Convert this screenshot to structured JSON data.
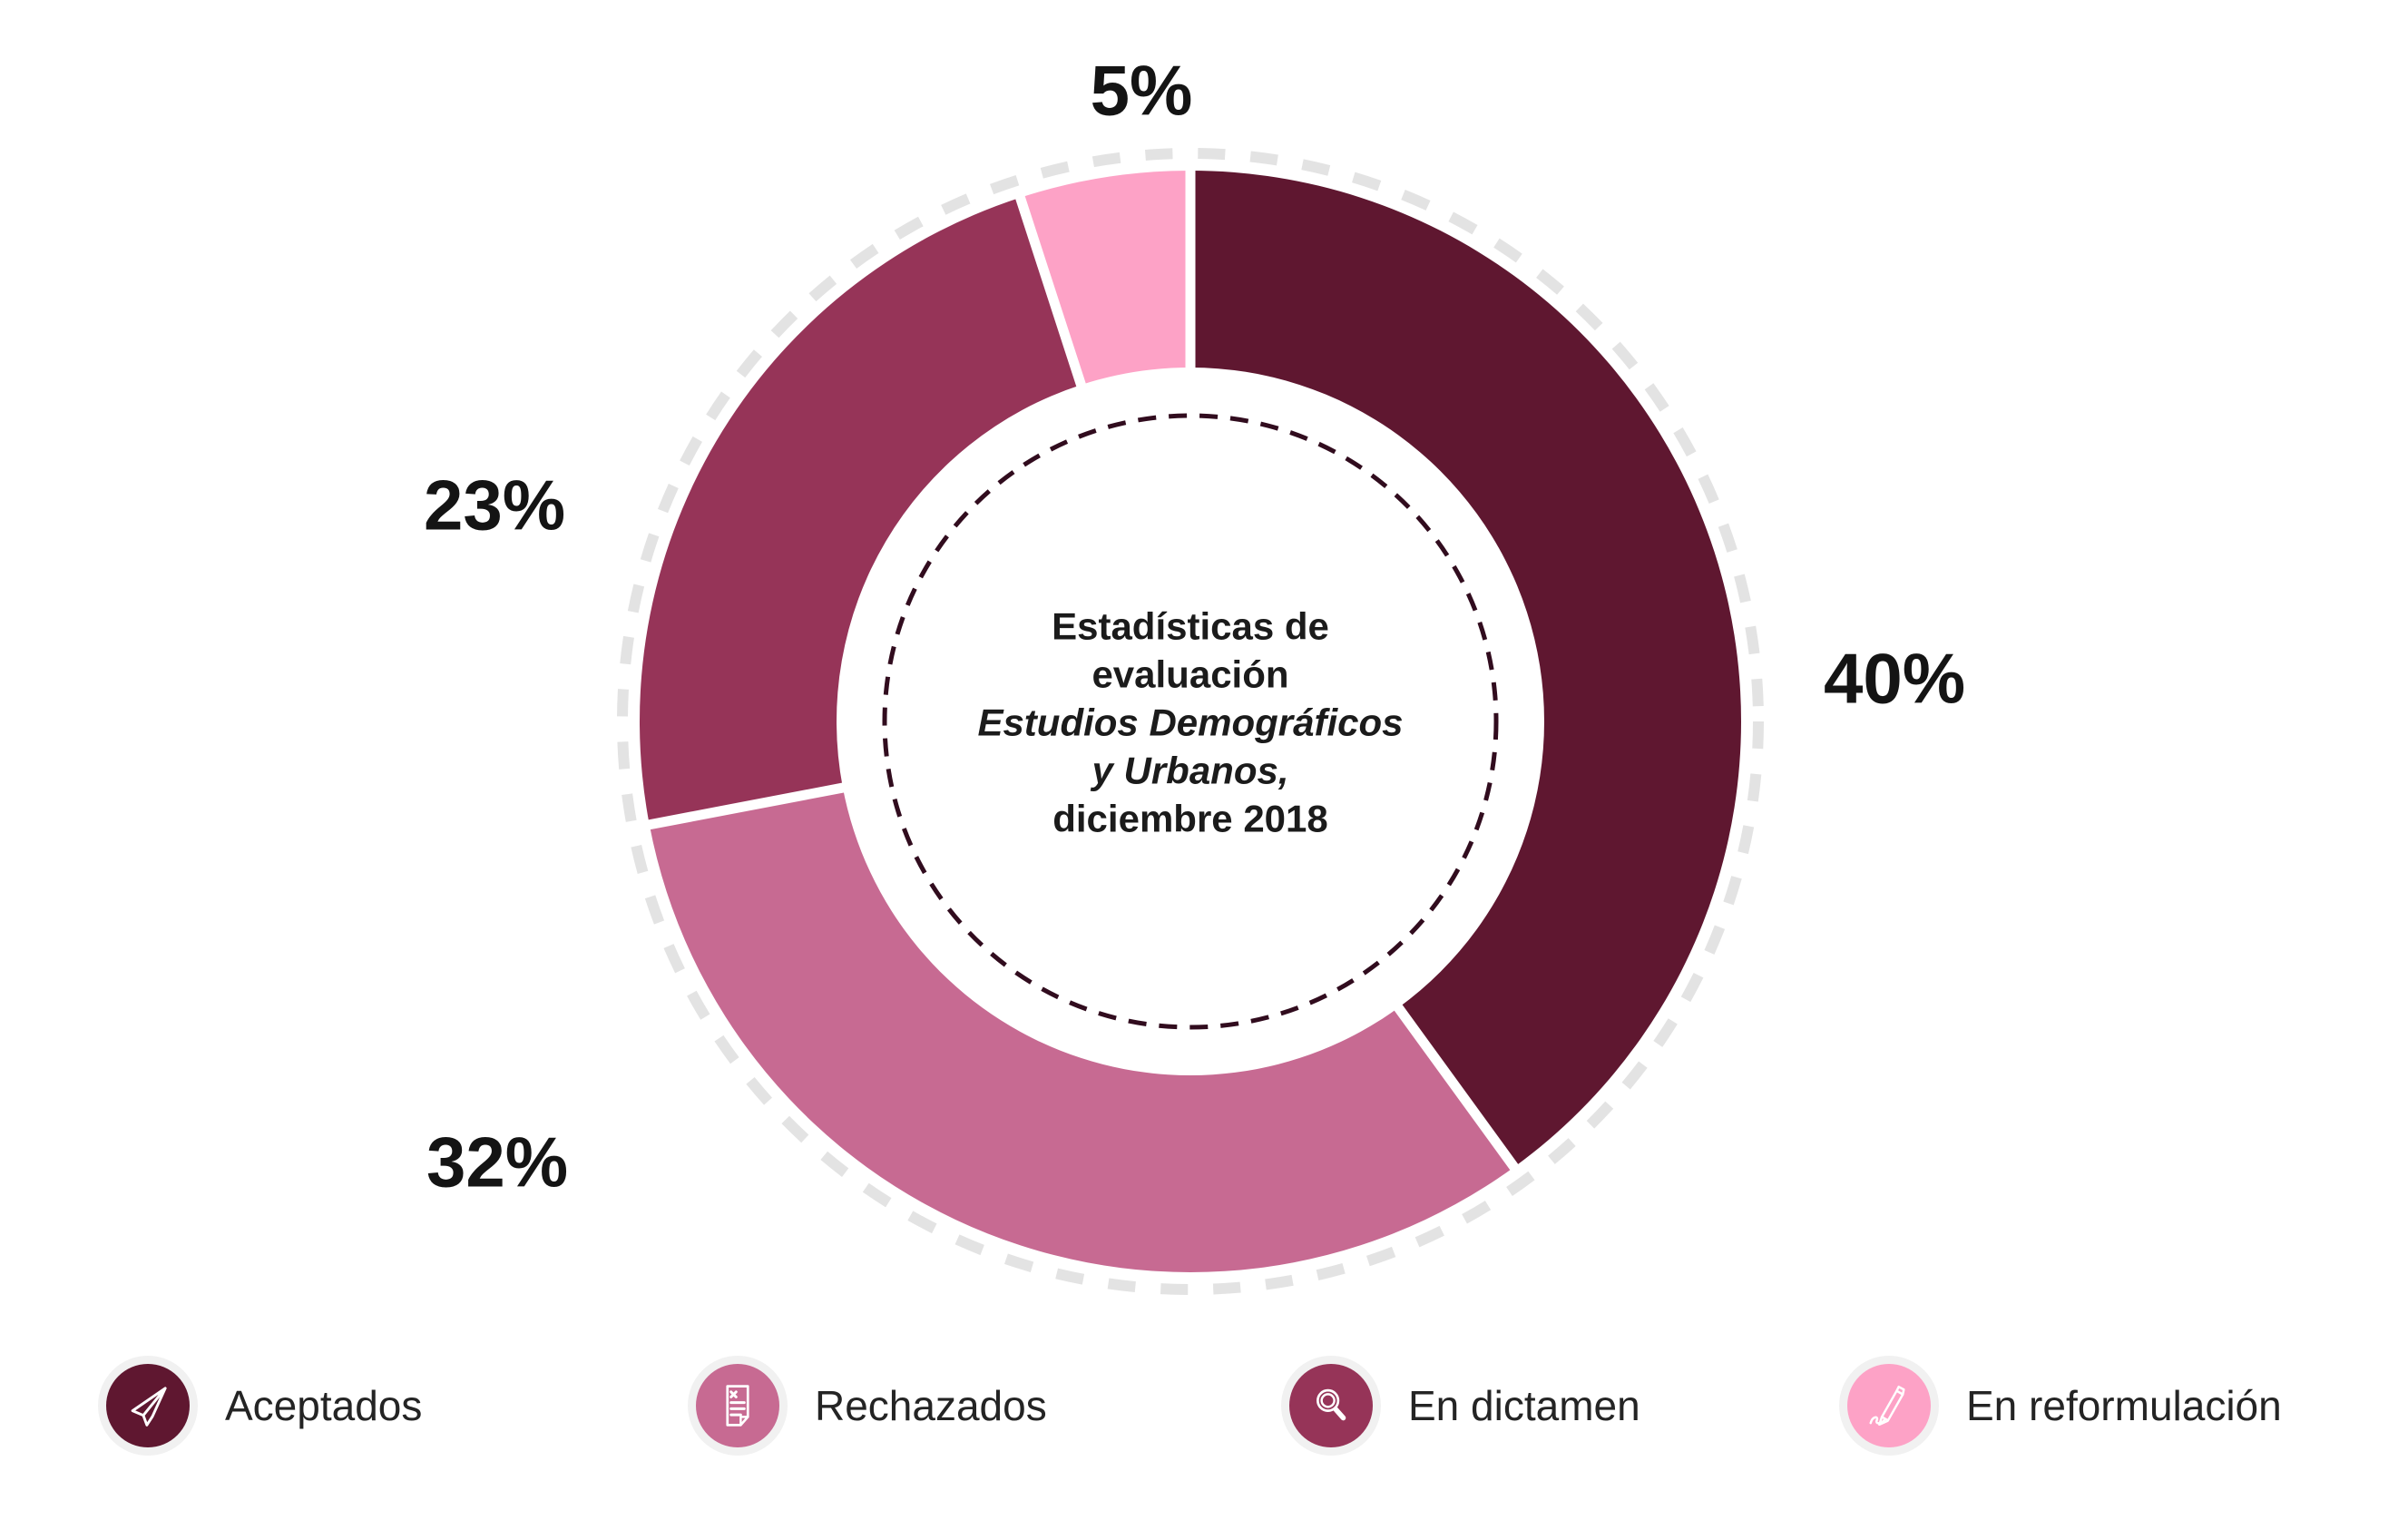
{
  "chart_data": {
    "type": "pie",
    "subtype": "donut",
    "title": "Estadísticas de evaluación Estudios Demográficos y Urbanos, diciembre 2018",
    "center_label": {
      "line1": "Estadísticas de",
      "line2": "evaluación",
      "line3_italic": "Estudios Demográficos",
      "line4_italic": "y Urbanos,",
      "line5": "diciembre 2018"
    },
    "unit": "%",
    "start_angle_deg": 0,
    "direction": "clockwise",
    "slices": [
      {
        "label": "Aceptados",
        "value": 40,
        "display": "40%",
        "color": "#5f1730"
      },
      {
        "label": "Rechazados",
        "value": 32,
        "display": "32%",
        "color": "#c76a92"
      },
      {
        "label": "En dictamen",
        "value": 23,
        "display": "23%",
        "color": "#963458"
      },
      {
        "label": "En reformulación",
        "value": 5,
        "display": "5%",
        "color": "#fda2c6"
      }
    ],
    "outer_dashed_ring_color": "#e3e3e3",
    "inner_dashed_ring_color": "#310c1e",
    "separator_color": "#ffffff",
    "legend_position": "bottom"
  },
  "legend": {
    "items": [
      {
        "label": "Aceptados",
        "icon": "paper-plane-icon",
        "color": "#5f1730"
      },
      {
        "label": "Rechazados",
        "icon": "document-x-icon",
        "color": "#c76a92"
      },
      {
        "label": "En dictamen",
        "icon": "magnifier-icon",
        "color": "#963458"
      },
      {
        "label": "En reformulación",
        "icon": "pen-signature-icon",
        "color": "#fda2c6"
      }
    ]
  }
}
